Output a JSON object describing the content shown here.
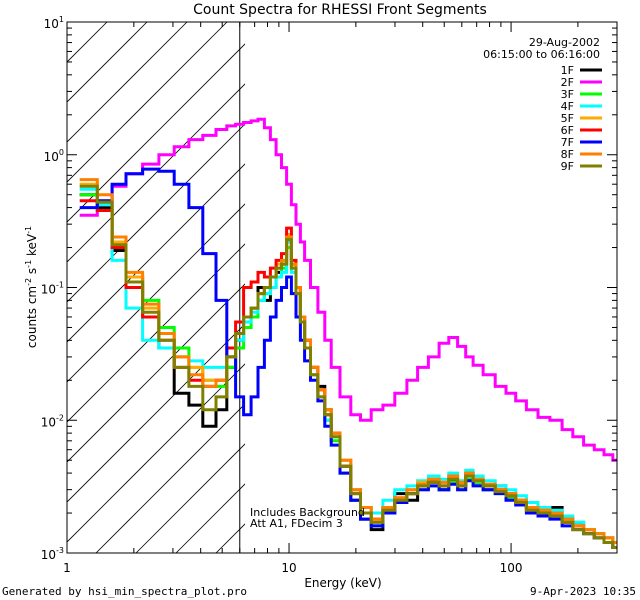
{
  "chart_data": {
    "type": "line",
    "title": "Count Spectra for RHESSI Front Segments",
    "xlabel": "Energy (keV)",
    "ylabel_parts": {
      "base": "counts cm",
      "exp1": "-2",
      "mid": " s",
      "exp2": "-1",
      "tail": " keV",
      "exp3": "-1"
    },
    "x_scale": "log",
    "y_scale": "log",
    "xlim": [
      1,
      300
    ],
    "ylim": [
      0.001,
      10
    ],
    "x_major_ticks": [
      1,
      10,
      100
    ],
    "x_tick_labels": [
      "1",
      "10",
      "100"
    ],
    "y_major_ticks": [
      0.001,
      0.01,
      0.1,
      1,
      10
    ],
    "y_tick_labels": [
      {
        "base": "10",
        "exp": "-3"
      },
      {
        "base": "10",
        "exp": "-2"
      },
      {
        "base": "10",
        "exp": "-1"
      },
      {
        "base": "10",
        "exp": "0"
      },
      {
        "base": "10",
        "exp": "1"
      }
    ],
    "date": "29-Aug-2002",
    "time_range": "06:15:00 to 06:16:00",
    "annotations": [
      "Includes Background",
      "Att A1, FDecim 3"
    ],
    "excluded_region_below_keV": 6,
    "series": [
      {
        "name": "1F",
        "color": "#000000",
        "x": [
          1.25,
          1.5,
          1.7,
          2.0,
          2.4,
          2.8,
          3.3,
          3.8,
          4.4,
          5.0,
          5.5,
          6.0,
          6.5,
          7.0,
          7.5,
          8.0,
          8.5,
          9.0,
          9.5,
          10.0,
          10.5,
          11.0,
          11.5,
          12.0,
          13.0,
          14.0,
          15.0,
          16.0,
          18.0,
          20.0,
          22.0,
          25.0,
          28.0,
          32.0,
          36.0,
          40.0,
          45.0,
          50.0,
          55.0,
          60.0,
          65.0,
          70.0,
          80.0,
          90.0,
          100.0,
          110.0,
          125.0,
          140.0,
          160.0,
          180.0,
          200.0,
          225.0,
          250.0,
          275.0,
          300.0
        ],
        "y": [
          0.5,
          0.4,
          0.19,
          0.12,
          0.06,
          0.035,
          0.016,
          0.013,
          0.009,
          0.012,
          0.025,
          0.04,
          0.06,
          0.07,
          0.1,
          0.08,
          0.12,
          0.13,
          0.15,
          0.25,
          0.15,
          0.1,
          0.06,
          0.04,
          0.025,
          0.018,
          0.012,
          0.008,
          0.0045,
          0.0025,
          0.0018,
          0.0015,
          0.002,
          0.0028,
          0.0025,
          0.0032,
          0.0035,
          0.003,
          0.0035,
          0.0032,
          0.004,
          0.0035,
          0.003,
          0.0032,
          0.0028,
          0.0025,
          0.0022,
          0.002,
          0.0022,
          0.0018,
          0.0017,
          0.0015,
          0.0014,
          0.0013,
          0.0012
        ]
      },
      {
        "name": "2F",
        "color": "#ff00ff",
        "x": [
          1.25,
          1.5,
          1.7,
          2.0,
          2.4,
          2.8,
          3.3,
          3.8,
          4.4,
          5.0,
          5.5,
          6.0,
          6.5,
          7.0,
          7.5,
          8.0,
          8.5,
          9.0,
          9.5,
          10.0,
          10.5,
          11.0,
          11.5,
          12.0,
          13.0,
          14.0,
          15.0,
          16.0,
          18.0,
          20.0,
          22.0,
          25.0,
          28.0,
          32.0,
          36.0,
          40.0,
          45.0,
          50.0,
          55.0,
          60.0,
          65.0,
          70.0,
          80.0,
          90.0,
          100.0,
          110.0,
          125.0,
          140.0,
          160.0,
          180.0,
          200.0,
          225.0,
          250.0,
          275.0,
          300.0
        ],
        "y": [
          0.35,
          0.42,
          0.58,
          0.72,
          0.85,
          1.0,
          1.15,
          1.3,
          1.4,
          1.55,
          1.65,
          1.7,
          1.75,
          1.8,
          1.85,
          1.6,
          1.3,
          1.0,
          0.8,
          0.6,
          0.42,
          0.3,
          0.22,
          0.16,
          0.1,
          0.065,
          0.04,
          0.025,
          0.015,
          0.011,
          0.01,
          0.012,
          0.013,
          0.016,
          0.02,
          0.025,
          0.03,
          0.038,
          0.042,
          0.036,
          0.03,
          0.026,
          0.022,
          0.018,
          0.016,
          0.014,
          0.012,
          0.0105,
          0.01,
          0.0085,
          0.0075,
          0.0065,
          0.006,
          0.0055,
          0.005
        ]
      },
      {
        "name": "3F",
        "color": "#00ff00",
        "x": [
          1.25,
          1.5,
          1.7,
          2.0,
          2.4,
          2.8,
          3.3,
          3.8,
          4.4,
          5.0,
          5.5,
          6.0,
          6.5,
          7.0,
          7.5,
          8.0,
          8.5,
          9.0,
          9.5,
          10.0,
          10.5,
          11.0,
          11.5,
          12.0,
          13.0,
          14.0,
          15.0,
          16.0,
          18.0,
          20.0,
          22.0,
          25.0,
          28.0,
          32.0,
          36.0,
          40.0,
          45.0,
          50.0,
          55.0,
          60.0,
          65.0,
          70.0,
          80.0,
          90.0,
          100.0,
          110.0,
          125.0,
          140.0,
          160.0,
          180.0,
          200.0,
          225.0,
          250.0,
          275.0,
          300.0
        ],
        "y": [
          0.5,
          0.38,
          0.2,
          0.11,
          0.08,
          0.05,
          0.035,
          0.025,
          0.02,
          0.018,
          0.025,
          0.035,
          0.05,
          0.06,
          0.08,
          0.09,
          0.1,
          0.12,
          0.14,
          0.2,
          0.14,
          0.09,
          0.055,
          0.035,
          0.022,
          0.015,
          0.01,
          0.007,
          0.004,
          0.0025,
          0.0018,
          0.0016,
          0.0022,
          0.0025,
          0.0028,
          0.003,
          0.0032,
          0.003,
          0.0034,
          0.003,
          0.0036,
          0.0033,
          0.003,
          0.0028,
          0.0026,
          0.0024,
          0.0021,
          0.002,
          0.0019,
          0.0017,
          0.0016,
          0.0014,
          0.0013,
          0.0012,
          0.0012
        ]
      },
      {
        "name": "4F",
        "color": "#00ffff",
        "x": [
          1.25,
          1.5,
          1.7,
          2.0,
          2.4,
          2.8,
          3.3,
          3.8,
          4.4,
          5.0,
          5.5,
          6.0,
          6.5,
          7.0,
          7.5,
          8.0,
          8.5,
          9.0,
          9.5,
          10.0,
          10.5,
          11.0,
          11.5,
          12.0,
          13.0,
          14.0,
          15.0,
          16.0,
          18.0,
          20.0,
          22.0,
          25.0,
          28.0,
          32.0,
          36.0,
          40.0,
          45.0,
          50.0,
          55.0,
          60.0,
          65.0,
          70.0,
          80.0,
          90.0,
          100.0,
          110.0,
          125.0,
          140.0,
          160.0,
          180.0,
          200.0,
          225.0,
          250.0,
          275.0,
          300.0
        ],
        "y": [
          0.55,
          0.42,
          0.16,
          0.07,
          0.04,
          0.035,
          0.03,
          0.028,
          0.025,
          0.025,
          0.03,
          0.04,
          0.055,
          0.065,
          0.08,
          0.09,
          0.1,
          0.12,
          0.13,
          0.22,
          0.13,
          0.09,
          0.055,
          0.035,
          0.022,
          0.015,
          0.01,
          0.0075,
          0.0045,
          0.003,
          0.0022,
          0.002,
          0.0025,
          0.003,
          0.0032,
          0.0035,
          0.0038,
          0.0036,
          0.004,
          0.0035,
          0.0042,
          0.0038,
          0.0035,
          0.0032,
          0.003,
          0.0027,
          0.0024,
          0.0022,
          0.0021,
          0.0019,
          0.0017,
          0.0015,
          0.0014,
          0.0013,
          0.0012
        ]
      },
      {
        "name": "5F",
        "color": "#ffaa00",
        "x": [
          1.25,
          1.5,
          1.7,
          2.0,
          2.4,
          2.8,
          3.3,
          3.8,
          4.4,
          5.0,
          5.5,
          6.0,
          6.5,
          7.0,
          7.5,
          8.0,
          8.5,
          9.0,
          9.5,
          10.0,
          10.5,
          11.0,
          11.5,
          12.0,
          13.0,
          14.0,
          15.0,
          16.0,
          18.0,
          20.0,
          22.0,
          25.0,
          28.0,
          32.0,
          36.0,
          40.0,
          45.0,
          50.0,
          55.0,
          60.0,
          65.0,
          70.0,
          80.0,
          90.0,
          100.0,
          110.0,
          125.0,
          140.0,
          160.0,
          180.0,
          200.0,
          225.0,
          250.0,
          275.0,
          300.0
        ],
        "y": [
          0.6,
          0.45,
          0.22,
          0.12,
          0.07,
          0.045,
          0.03,
          0.025,
          0.02,
          0.02,
          0.03,
          0.045,
          0.06,
          0.07,
          0.09,
          0.1,
          0.12,
          0.15,
          0.16,
          0.25,
          0.15,
          0.1,
          0.06,
          0.04,
          0.025,
          0.017,
          0.012,
          0.008,
          0.005,
          0.003,
          0.0022,
          0.0018,
          0.0022,
          0.0026,
          0.003,
          0.0034,
          0.0036,
          0.0034,
          0.0038,
          0.0034,
          0.004,
          0.0036,
          0.0033,
          0.003,
          0.0028,
          0.0025,
          0.0022,
          0.0021,
          0.002,
          0.0018,
          0.0016,
          0.0015,
          0.0014,
          0.0013,
          0.0012
        ]
      },
      {
        "name": "6F",
        "color": "#ff0000",
        "x": [
          1.25,
          1.5,
          1.7,
          2.0,
          2.4,
          2.8,
          3.3,
          3.8,
          4.4,
          5.0,
          5.5,
          6.0,
          6.5,
          7.0,
          7.5,
          8.0,
          8.5,
          9.0,
          9.5,
          10.0,
          10.5,
          11.0,
          11.5,
          12.0,
          13.0,
          14.0,
          15.0,
          16.0,
          18.0,
          20.0,
          22.0,
          25.0,
          28.0,
          32.0,
          36.0,
          40.0,
          45.0,
          50.0,
          55.0,
          60.0,
          65.0,
          70.0,
          80.0,
          90.0,
          100.0,
          110.0,
          125.0,
          140.0,
          160.0,
          180.0,
          200.0,
          225.0,
          250.0,
          275.0,
          300.0
        ],
        "y": [
          0.45,
          0.38,
          0.2,
          0.1,
          0.06,
          0.04,
          0.025,
          0.02,
          0.018,
          0.02,
          0.035,
          0.055,
          0.1,
          0.11,
          0.13,
          0.12,
          0.14,
          0.16,
          0.18,
          0.28,
          0.16,
          0.1,
          0.06,
          0.04,
          0.025,
          0.017,
          0.011,
          0.008,
          0.0045,
          0.0028,
          0.002,
          0.0018,
          0.0022,
          0.0026,
          0.0028,
          0.0032,
          0.0034,
          0.0032,
          0.0036,
          0.0032,
          0.0038,
          0.0035,
          0.0032,
          0.003,
          0.0027,
          0.0024,
          0.0022,
          0.002,
          0.0019,
          0.0017,
          0.0016,
          0.0014,
          0.0013,
          0.0012,
          0.0011
        ]
      },
      {
        "name": "7F",
        "color": "#0000ff",
        "x": [
          1.25,
          1.5,
          1.7,
          2.0,
          2.4,
          2.8,
          3.3,
          3.8,
          4.4,
          5.0,
          5.5,
          6.0,
          6.5,
          7.0,
          7.5,
          8.0,
          8.5,
          9.0,
          9.5,
          10.0,
          10.5,
          11.0,
          11.5,
          12.0,
          13.0,
          14.0,
          15.0,
          16.0,
          18.0,
          20.0,
          22.0,
          25.0,
          28.0,
          32.0,
          36.0,
          40.0,
          45.0,
          50.0,
          55.0,
          60.0,
          65.0,
          70.0,
          80.0,
          90.0,
          100.0,
          110.0,
          125.0,
          140.0,
          160.0,
          180.0,
          200.0,
          225.0,
          250.0,
          275.0,
          300.0
        ],
        "y": [
          0.4,
          0.45,
          0.6,
          0.72,
          0.78,
          0.75,
          0.6,
          0.4,
          0.18,
          0.08,
          0.03,
          0.015,
          0.011,
          0.015,
          0.025,
          0.04,
          0.06,
          0.08,
          0.1,
          0.12,
          0.09,
          0.06,
          0.04,
          0.028,
          0.02,
          0.014,
          0.009,
          0.0065,
          0.004,
          0.0025,
          0.0018,
          0.0016,
          0.002,
          0.0024,
          0.0028,
          0.003,
          0.0032,
          0.003,
          0.0033,
          0.003,
          0.0035,
          0.0032,
          0.003,
          0.0028,
          0.0025,
          0.0023,
          0.002,
          0.0019,
          0.0018,
          0.0016,
          0.0015,
          0.0014,
          0.0013,
          0.0012,
          0.0011
        ]
      },
      {
        "name": "8F",
        "color": "#ff7f00",
        "x": [
          1.25,
          1.5,
          1.7,
          2.0,
          2.4,
          2.8,
          3.3,
          3.8,
          4.4,
          5.0,
          5.5,
          6.0,
          6.5,
          7.0,
          7.5,
          8.0,
          8.5,
          9.0,
          9.5,
          10.0,
          10.5,
          11.0,
          11.5,
          12.0,
          13.0,
          14.0,
          15.0,
          16.0,
          18.0,
          20.0,
          22.0,
          25.0,
          28.0,
          32.0,
          36.0,
          40.0,
          45.0,
          50.0,
          55.0,
          60.0,
          65.0,
          70.0,
          80.0,
          90.0,
          100.0,
          110.0,
          125.0,
          140.0,
          160.0,
          180.0,
          200.0,
          225.0,
          250.0,
          275.0,
          300.0
        ],
        "y": [
          0.65,
          0.5,
          0.24,
          0.13,
          0.075,
          0.045,
          0.03,
          0.022,
          0.018,
          0.02,
          0.03,
          0.045,
          0.06,
          0.07,
          0.09,
          0.1,
          0.12,
          0.14,
          0.16,
          0.24,
          0.15,
          0.1,
          0.06,
          0.04,
          0.025,
          0.017,
          0.012,
          0.008,
          0.005,
          0.003,
          0.0022,
          0.0018,
          0.0022,
          0.0026,
          0.003,
          0.0033,
          0.0036,
          0.0034,
          0.0038,
          0.0034,
          0.004,
          0.0036,
          0.0033,
          0.003,
          0.0028,
          0.0025,
          0.0022,
          0.0021,
          0.002,
          0.0018,
          0.0016,
          0.0015,
          0.0014,
          0.0013,
          0.0012
        ]
      },
      {
        "name": "9F",
        "color": "#808000",
        "x": [
          1.25,
          1.5,
          1.7,
          2.0,
          2.4,
          2.8,
          3.3,
          3.8,
          4.4,
          5.0,
          5.5,
          6.0,
          6.5,
          7.0,
          7.5,
          8.0,
          8.5,
          9.0,
          9.5,
          10.0,
          10.5,
          11.0,
          11.5,
          12.0,
          13.0,
          14.0,
          15.0,
          16.0,
          18.0,
          20.0,
          22.0,
          25.0,
          28.0,
          32.0,
          36.0,
          40.0,
          45.0,
          50.0,
          55.0,
          60.0,
          65.0,
          70.0,
          80.0,
          90.0,
          100.0,
          110.0,
          125.0,
          140.0,
          160.0,
          180.0,
          200.0,
          225.0,
          250.0,
          275.0,
          300.0
        ],
        "y": [
          0.58,
          0.44,
          0.21,
          0.11,
          0.065,
          0.04,
          0.025,
          0.018,
          0.012,
          0.015,
          0.03,
          0.045,
          0.06,
          0.07,
          0.09,
          0.1,
          0.12,
          0.14,
          0.15,
          0.23,
          0.14,
          0.09,
          0.055,
          0.035,
          0.022,
          0.015,
          0.011,
          0.0075,
          0.0045,
          0.0028,
          0.002,
          0.0017,
          0.0021,
          0.0025,
          0.0028,
          0.0032,
          0.0034,
          0.0032,
          0.0036,
          0.0032,
          0.0038,
          0.0035,
          0.0032,
          0.0029,
          0.0027,
          0.0024,
          0.0021,
          0.002,
          0.0019,
          0.0017,
          0.0015,
          0.0014,
          0.0013,
          0.0012,
          0.0011
        ]
      }
    ]
  },
  "footer": {
    "generated_by": "Generated by hsi_min_spectra_plot.pro",
    "timestamp": "9-Apr-2023 10:35"
  }
}
